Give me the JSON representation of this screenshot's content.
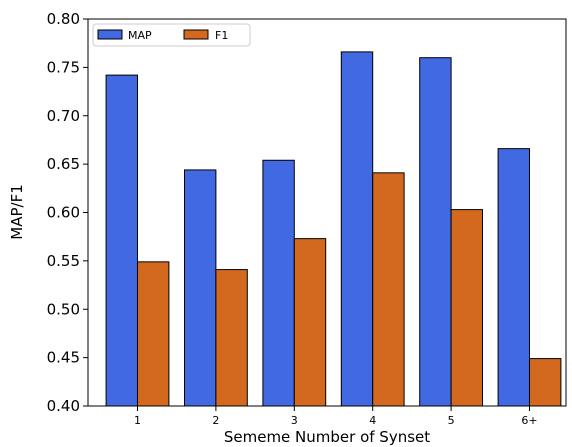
{
  "chart_data": {
    "type": "bar",
    "title": "",
    "xlabel": "Sememe Number of Synset",
    "ylabel": "MAP/F1",
    "categories": [
      "1",
      "2",
      "3",
      "4",
      "5",
      "6+"
    ],
    "series": [
      {
        "name": "MAP",
        "color": "#4169E1",
        "values": [
          0.742,
          0.644,
          0.654,
          0.766,
          0.76,
          0.666
        ]
      },
      {
        "name": "F1",
        "color": "#D2691E",
        "values": [
          0.549,
          0.541,
          0.573,
          0.641,
          0.603,
          0.449
        ]
      }
    ],
    "ylim": [
      0.4,
      0.8
    ],
    "yticks": [
      "0.40",
      "0.45",
      "0.50",
      "0.55",
      "0.60",
      "0.65",
      "0.70",
      "0.75",
      "0.80"
    ],
    "legend_position": "top-left",
    "grid": false
  }
}
